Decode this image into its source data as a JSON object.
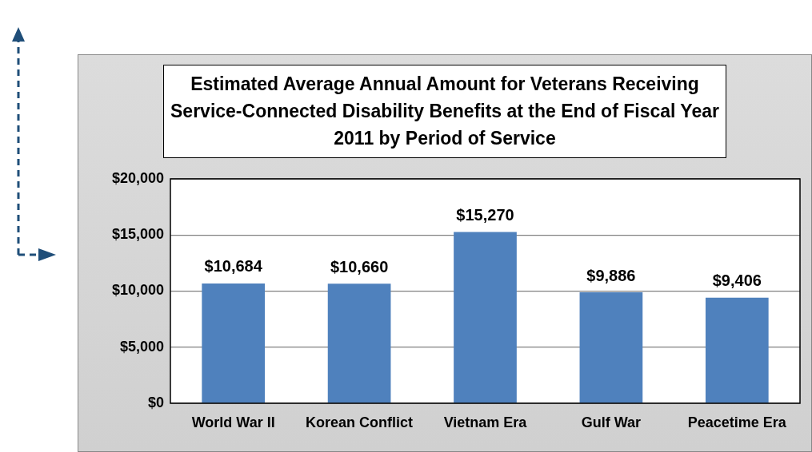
{
  "chart_data": {
    "type": "bar",
    "title": "Estimated Average Annual Amount for Veterans Receiving Service-Connected Disability Benefits at the End of Fiscal Year 2011 by Period of Service",
    "categories": [
      "World War II",
      "Korean Conflict",
      "Vietnam Era",
      "Gulf War",
      "Peacetime Era"
    ],
    "values": [
      10684,
      10660,
      15270,
      9886,
      9406
    ],
    "value_labels": [
      "$10,684",
      "$10,660",
      "$15,270",
      "$9,886",
      "$9,406"
    ],
    "color": "#4f81bd",
    "ylim": [
      0,
      20000
    ],
    "yticks": [
      {
        "value": 0,
        "label": "$0"
      },
      {
        "value": 5000,
        "label": "$5,000"
      },
      {
        "value": 10000,
        "label": "$10,000"
      },
      {
        "value": 15000,
        "label": "$15,000"
      },
      {
        "value": 20000,
        "label": "$20,000"
      }
    ],
    "grid": "y",
    "legend": false
  }
}
